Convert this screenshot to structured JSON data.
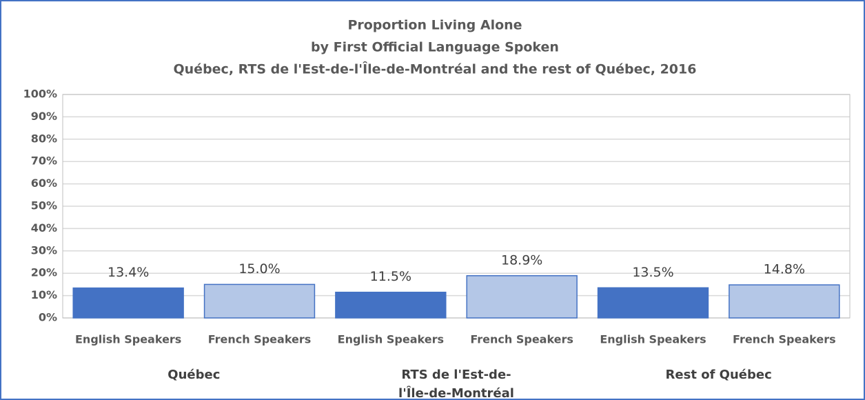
{
  "chart_data": {
    "type": "bar",
    "title": "Proportion Living Alone",
    "subtitle": [
      "by First Official Language Spoken",
      "Québec, RTS de l'Est-de-l'Île-de-Montréal and the rest of Québec, 2016"
    ],
    "categories": [
      "Québec",
      "RTS de l'Est-de-l'Île-de-Montréal",
      "Rest of Québec"
    ],
    "series": [
      {
        "name": "English Speakers",
        "color": "#4472c4",
        "values": [
          13.4,
          11.5,
          13.5
        ],
        "value_labels": [
          "13.4%",
          "11.5%",
          "13.5%"
        ]
      },
      {
        "name": "French Speakers",
        "color": "#b4c7e7",
        "values": [
          15.0,
          18.9,
          14.8
        ],
        "value_labels": [
          "15.0%",
          "18.9%",
          "14.8%"
        ]
      }
    ],
    "ylim": [
      0,
      100
    ],
    "yticks": [
      {
        "value": 0,
        "label": "0%"
      },
      {
        "value": 10,
        "label": "10%"
      },
      {
        "value": 20,
        "label": "20%"
      },
      {
        "value": 30,
        "label": "30%"
      },
      {
        "value": 40,
        "label": "40%"
      },
      {
        "value": 50,
        "label": "50%"
      },
      {
        "value": 60,
        "label": "60%"
      },
      {
        "value": 70,
        "label": "70%"
      },
      {
        "value": 80,
        "label": "80%"
      },
      {
        "value": 90,
        "label": "90%"
      },
      {
        "value": 100,
        "label": "100%"
      }
    ],
    "grid": true
  }
}
